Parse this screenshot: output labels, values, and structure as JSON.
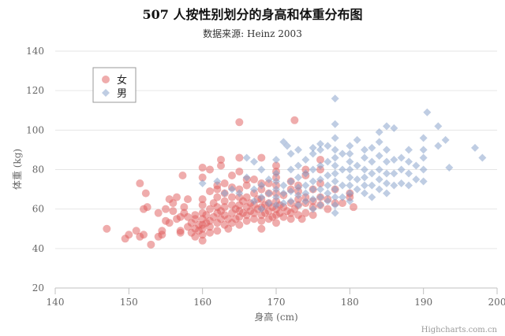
{
  "chart_data": {
    "type": "scatter",
    "title": "507 人按性别划分的身高和体重分布图",
    "subtitle": "数据来源: Heinz 2003",
    "xlabel": "身高 (cm)",
    "ylabel": "体重 (kg)",
    "xlim": [
      140,
      200
    ],
    "ylim": [
      20,
      140
    ],
    "xticks": [
      140,
      150,
      160,
      170,
      180,
      190,
      200
    ],
    "yticks": [
      20,
      40,
      60,
      80,
      100,
      120,
      140
    ],
    "grid": true,
    "legend_position": "top-left",
    "credit": "Highcharts.com.cn",
    "series": [
      {
        "name": "女",
        "color": "#e05a5a",
        "marker": "circle",
        "points": [
          [
            147,
            50
          ],
          [
            149.5,
            45
          ],
          [
            150,
            47
          ],
          [
            151,
            49
          ],
          [
            151.5,
            73
          ],
          [
            152,
            60
          ],
          [
            152.3,
            68
          ],
          [
            152.5,
            61
          ],
          [
            152,
            47
          ],
          [
            151.5,
            46
          ],
          [
            153,
            42
          ],
          [
            154,
            46
          ],
          [
            154.5,
            47
          ],
          [
            154.5,
            49
          ],
          [
            154,
            58
          ],
          [
            155,
            54
          ],
          [
            155.5,
            53
          ],
          [
            155,
            60
          ],
          [
            155.5,
            65
          ],
          [
            156,
            59
          ],
          [
            156,
            63
          ],
          [
            156.5,
            66
          ],
          [
            156.5,
            55
          ],
          [
            157,
            49
          ],
          [
            157,
            56
          ],
          [
            157.5,
            61
          ],
          [
            157.5,
            58
          ],
          [
            157.3,
            77
          ],
          [
            157,
            48
          ],
          [
            158,
            51
          ],
          [
            158,
            56
          ],
          [
            158.5,
            48
          ],
          [
            158.5,
            53
          ],
          [
            159,
            57
          ],
          [
            159,
            50
          ],
          [
            159,
            46
          ],
          [
            159.5,
            52
          ],
          [
            159.5,
            49
          ],
          [
            160,
            44
          ],
          [
            160,
            47
          ],
          [
            160,
            50
          ],
          [
            160,
            52
          ],
          [
            160,
            55
          ],
          [
            160,
            58
          ],
          [
            160,
            62
          ],
          [
            160,
            65
          ],
          [
            160,
            76
          ],
          [
            160,
            81
          ],
          [
            160.5,
            53
          ],
          [
            160.5,
            57
          ],
          [
            161,
            48
          ],
          [
            161,
            51
          ],
          [
            161,
            54
          ],
          [
            161,
            60
          ],
          [
            161,
            69
          ],
          [
            161,
            80
          ],
          [
            161.5,
            56
          ],
          [
            161.5,
            63
          ],
          [
            162,
            49
          ],
          [
            162,
            53
          ],
          [
            162,
            58
          ],
          [
            162,
            61
          ],
          [
            162,
            66
          ],
          [
            162,
            72
          ],
          [
            162.5,
            55
          ],
          [
            162.5,
            59
          ],
          [
            162.5,
            82
          ],
          [
            162.5,
            85
          ],
          [
            163,
            52
          ],
          [
            163,
            57
          ],
          [
            163,
            61
          ],
          [
            163,
            64
          ],
          [
            163,
            68
          ],
          [
            163,
            73
          ],
          [
            163.5,
            50
          ],
          [
            163.5,
            55
          ],
          [
            164,
            53
          ],
          [
            164,
            58
          ],
          [
            164,
            62
          ],
          [
            164,
            66
          ],
          [
            164,
            71
          ],
          [
            164.5,
            55
          ],
          [
            164.5,
            60
          ],
          [
            165,
            52
          ],
          [
            165,
            56
          ],
          [
            165,
            59
          ],
          [
            165,
            62
          ],
          [
            165,
            66
          ],
          [
            165,
            70
          ],
          [
            165,
            104
          ],
          [
            165,
            86
          ],
          [
            165,
            79
          ],
          [
            165.5,
            58
          ],
          [
            165.5,
            64
          ],
          [
            166,
            54
          ],
          [
            166,
            57
          ],
          [
            166,
            61
          ],
          [
            166,
            66
          ],
          [
            166,
            72
          ],
          [
            166.5,
            59
          ],
          [
            166.5,
            63
          ],
          [
            167,
            55
          ],
          [
            167,
            58
          ],
          [
            167,
            62
          ],
          [
            167,
            68
          ],
          [
            167,
            75
          ],
          [
            167.5,
            60
          ],
          [
            167.5,
            65
          ],
          [
            168,
            50
          ],
          [
            168,
            54
          ],
          [
            168,
            57
          ],
          [
            168,
            61
          ],
          [
            168,
            65
          ],
          [
            168,
            70
          ],
          [
            168,
            86
          ],
          [
            168.5,
            58
          ],
          [
            168.5,
            62
          ],
          [
            169,
            55
          ],
          [
            169,
            59
          ],
          [
            169,
            63
          ],
          [
            169,
            68
          ],
          [
            169,
            73
          ],
          [
            169.5,
            56
          ],
          [
            169.5,
            61
          ],
          [
            170,
            53
          ],
          [
            170,
            57
          ],
          [
            170,
            60
          ],
          [
            170,
            64
          ],
          [
            170,
            68
          ],
          [
            170,
            72
          ],
          [
            170,
            76
          ],
          [
            170,
            79
          ],
          [
            170.5,
            58
          ],
          [
            170.5,
            62
          ],
          [
            171,
            56
          ],
          [
            171,
            61
          ],
          [
            171,
            67
          ],
          [
            171.5,
            59
          ],
          [
            172,
            55
          ],
          [
            172,
            58
          ],
          [
            172,
            63
          ],
          [
            172,
            70
          ],
          [
            172.5,
            60
          ],
          [
            172.5,
            105
          ],
          [
            173,
            57
          ],
          [
            173,
            62
          ],
          [
            173,
            65
          ],
          [
            173,
            69
          ],
          [
            173,
            72
          ],
          [
            173.5,
            55
          ],
          [
            174,
            58
          ],
          [
            174,
            63
          ],
          [
            174,
            66
          ],
          [
            174,
            77
          ],
          [
            175,
            57
          ],
          [
            175,
            61
          ],
          [
            175,
            64
          ],
          [
            175,
            70
          ],
          [
            176,
            62
          ],
          [
            176,
            66
          ],
          [
            176,
            73
          ],
          [
            176,
            85
          ],
          [
            177,
            60
          ],
          [
            177,
            65
          ],
          [
            178,
            63
          ],
          [
            178,
            70
          ],
          [
            179,
            63
          ],
          [
            180,
            66
          ],
          [
            180,
            68
          ],
          [
            180.5,
            61
          ],
          [
            162,
            70
          ],
          [
            164,
            77
          ],
          [
            166,
            75
          ],
          [
            168,
            73
          ],
          [
            170,
            82
          ],
          [
            172,
            74
          ],
          [
            174,
            80
          ],
          [
            176,
            80
          ],
          [
            158,
            65
          ],
          [
            159,
            55
          ]
        ]
      },
      {
        "name": "男",
        "color": "#7f9cc8",
        "marker": "diamond",
        "points": [
          [
            160,
            73
          ],
          [
            162,
            74
          ],
          [
            163,
            68
          ],
          [
            164,
            70
          ],
          [
            165,
            68
          ],
          [
            166,
            76
          ],
          [
            166,
            86
          ],
          [
            167,
            64
          ],
          [
            167,
            70
          ],
          [
            167,
            84
          ],
          [
            168,
            60
          ],
          [
            168,
            66
          ],
          [
            168,
            72
          ],
          [
            168,
            80
          ],
          [
            169,
            63
          ],
          [
            169,
            68
          ],
          [
            169,
            75
          ],
          [
            170,
            62
          ],
          [
            170,
            66
          ],
          [
            170,
            70
          ],
          [
            170,
            74
          ],
          [
            170,
            78
          ],
          [
            170,
            85
          ],
          [
            171,
            63
          ],
          [
            171,
            68
          ],
          [
            171,
            72
          ],
          [
            171,
            94
          ],
          [
            171.5,
            92
          ],
          [
            172,
            64
          ],
          [
            172,
            69
          ],
          [
            172,
            74
          ],
          [
            172,
            80
          ],
          [
            172,
            88
          ],
          [
            173,
            62
          ],
          [
            173,
            67
          ],
          [
            173,
            71
          ],
          [
            173,
            76
          ],
          [
            173,
            82
          ],
          [
            173,
            90
          ],
          [
            174,
            64
          ],
          [
            174,
            68
          ],
          [
            174,
            72
          ],
          [
            174,
            78
          ],
          [
            174,
            85
          ],
          [
            175,
            60
          ],
          [
            175,
            65
          ],
          [
            175,
            70
          ],
          [
            175,
            74
          ],
          [
            175,
            80
          ],
          [
            175,
            88
          ],
          [
            175,
            91
          ],
          [
            176,
            62
          ],
          [
            176,
            66
          ],
          [
            176,
            70
          ],
          [
            176,
            75
          ],
          [
            176,
            82
          ],
          [
            176,
            90
          ],
          [
            177,
            64
          ],
          [
            177,
            68
          ],
          [
            177,
            72
          ],
          [
            177,
            77
          ],
          [
            177,
            84
          ],
          [
            177,
            92
          ],
          [
            178,
            58
          ],
          [
            178,
            62
          ],
          [
            178,
            66
          ],
          [
            178,
            70
          ],
          [
            178,
            74
          ],
          [
            178,
            78
          ],
          [
            178,
            82
          ],
          [
            178,
            86
          ],
          [
            178,
            90
          ],
          [
            178,
            96
          ],
          [
            178,
            103
          ],
          [
            178,
            116
          ],
          [
            179,
            66
          ],
          [
            179,
            72
          ],
          [
            179,
            80
          ],
          [
            179,
            88
          ],
          [
            180,
            64
          ],
          [
            180,
            68
          ],
          [
            180,
            72
          ],
          [
            180,
            76
          ],
          [
            180,
            80
          ],
          [
            180,
            84
          ],
          [
            180,
            88
          ],
          [
            180,
            92
          ],
          [
            181,
            70
          ],
          [
            181,
            75
          ],
          [
            181,
            82
          ],
          [
            182,
            68
          ],
          [
            182,
            72
          ],
          [
            182,
            76
          ],
          [
            182,
            80
          ],
          [
            182,
            86
          ],
          [
            182,
            90
          ],
          [
            183,
            66
          ],
          [
            183,
            72
          ],
          [
            183,
            78
          ],
          [
            183,
            84
          ],
          [
            184,
            70
          ],
          [
            184,
            75
          ],
          [
            184,
            80
          ],
          [
            184,
            87
          ],
          [
            184,
            94
          ],
          [
            185,
            68
          ],
          [
            185,
            73
          ],
          [
            185,
            78
          ],
          [
            185,
            84
          ],
          [
            185,
            90
          ],
          [
            186,
            72
          ],
          [
            186,
            78
          ],
          [
            186,
            85
          ],
          [
            186,
            101
          ],
          [
            187,
            73
          ],
          [
            187,
            80
          ],
          [
            187,
            86
          ],
          [
            188,
            72
          ],
          [
            188,
            78
          ],
          [
            188,
            84
          ],
          [
            188,
            90
          ],
          [
            189,
            75
          ],
          [
            189,
            82
          ],
          [
            190,
            74
          ],
          [
            190,
            80
          ],
          [
            190,
            86
          ],
          [
            190,
            90
          ],
          [
            190,
            96
          ],
          [
            190.5,
            109
          ],
          [
            192,
            92
          ],
          [
            192,
            102
          ],
          [
            193,
            95
          ],
          [
            193.5,
            81
          ],
          [
            197,
            91
          ],
          [
            198,
            86
          ],
          [
            185,
            102
          ],
          [
            184,
            99
          ],
          [
            183,
            91
          ],
          [
            181,
            95
          ],
          [
            176,
            93
          ]
        ]
      }
    ]
  }
}
